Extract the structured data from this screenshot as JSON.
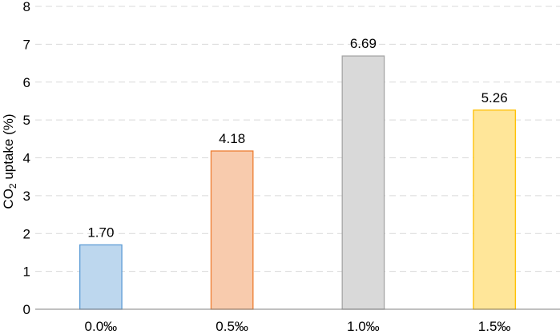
{
  "chart_data": {
    "type": "bar",
    "categories": [
      "0.0‰",
      "0.5‰",
      "1.0‰",
      "1.5‰"
    ],
    "values": [
      1.7,
      4.18,
      6.69,
      5.26
    ],
    "data_labels": [
      "1.70",
      "4.18",
      "6.69",
      "5.26"
    ],
    "title": "",
    "xlabel": "",
    "ylabel": {
      "prefix": "CO",
      "subscript": "2",
      "suffix": " uptake (%)"
    },
    "ylim": [
      0,
      8
    ],
    "yticks": [
      "0",
      "1",
      "2",
      "3",
      "4",
      "5",
      "6",
      "7",
      "8"
    ],
    "grid": "horizontal dashed",
    "colors": {
      "fills": [
        "#BDD7EE",
        "#F8CBAD",
        "#D9D9D9",
        "#FFE699"
      ],
      "strokes": [
        "#5B9BD5",
        "#ED7D31",
        "#A5A5A5",
        "#FFC000"
      ],
      "grid": "#D9D9D9",
      "axis": "#808080"
    }
  }
}
